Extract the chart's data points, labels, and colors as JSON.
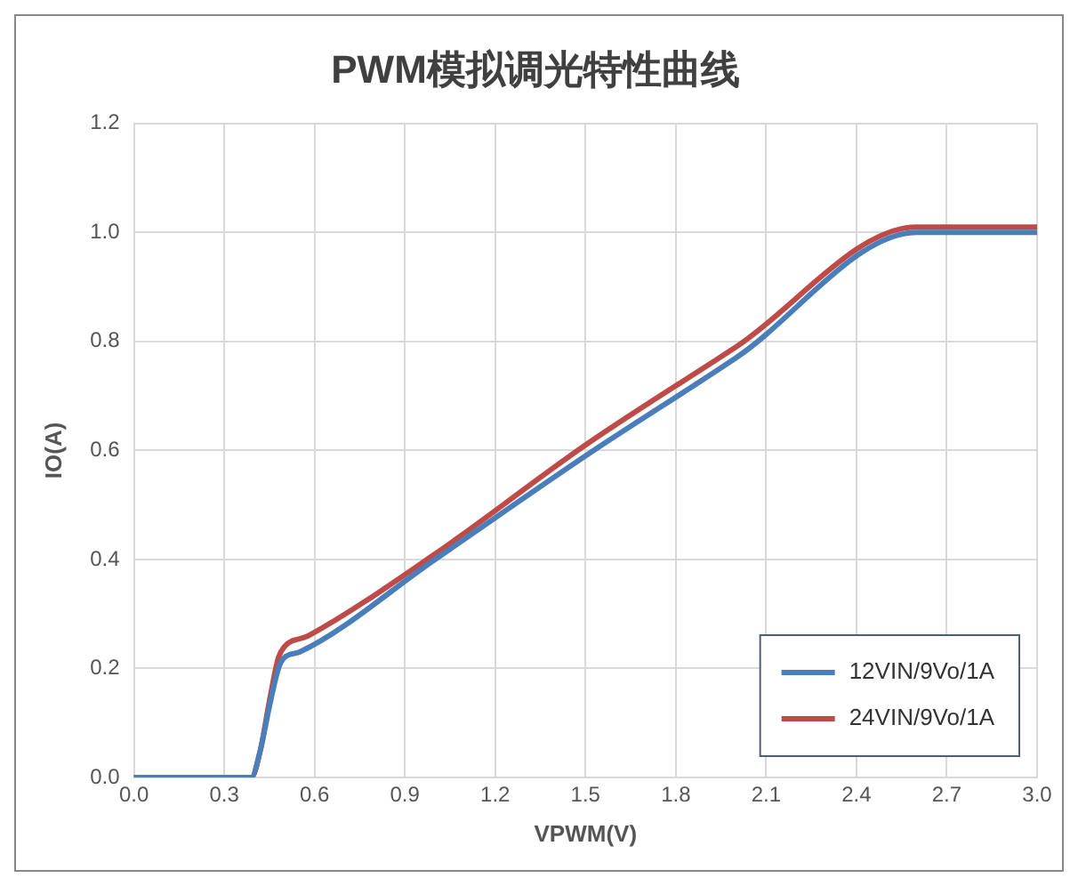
{
  "chart_data": {
    "type": "line",
    "title": "PWM模拟调光特性曲线",
    "xlabel": "VPWM(V)",
    "ylabel": "IO(A)",
    "xlim": [
      0,
      3
    ],
    "xticks": [
      {
        "value": 0,
        "label": "0.0"
      },
      {
        "value": 0.3,
        "label": "0.3"
      },
      {
        "value": 0.6,
        "label": "0.6"
      },
      {
        "value": 0.9,
        "label": "0.9"
      },
      {
        "value": 1.2,
        "label": "1.2"
      },
      {
        "value": 1.5,
        "label": "1.5"
      },
      {
        "value": 1.8,
        "label": "1.8"
      },
      {
        "value": 2.1,
        "label": "2.1"
      },
      {
        "value": 2.4,
        "label": "2.4"
      },
      {
        "value": 2.7,
        "label": "2.7"
      },
      {
        "value": 3,
        "label": "3.0"
      }
    ],
    "ylim": [
      0,
      1.2
    ],
    "yticks": [
      {
        "value": 0,
        "label": "0.0"
      },
      {
        "value": 0.2,
        "label": "0.2"
      },
      {
        "value": 0.4,
        "label": "0.4"
      },
      {
        "value": 0.6,
        "label": "0.6"
      },
      {
        "value": 0.8,
        "label": "0.8"
      },
      {
        "value": 1,
        "label": "1.0"
      },
      {
        "value": 1.2,
        "label": "1.2"
      }
    ],
    "grid": true,
    "legend": "bottom right",
    "marker": "none",
    "line_style": "solid",
    "series": [
      {
        "name": "12VIN/9Vo/1A",
        "color": "#4a7ebb",
        "x": [
          0,
          0.39,
          0.42,
          0.45,
          0.48,
          0.5,
          0.55,
          1.0,
          1.5,
          2.0,
          2.6,
          2.65,
          3.0
        ],
        "values": [
          0,
          0,
          0.05,
          0.13,
          0.2,
          0.22,
          0.23,
          0.4,
          0.59,
          0.77,
          1.0,
          1.0,
          1.0
        ]
      },
      {
        "name": "24VIN/9Vo/1A",
        "color": "#be4b48",
        "x": [
          0,
          0.39,
          0.42,
          0.45,
          0.48,
          0.5,
          0.58,
          1.0,
          1.5,
          2.0,
          2.6,
          2.65,
          3.0
        ],
        "values": [
          0,
          0,
          0.05,
          0.14,
          0.22,
          0.24,
          0.26,
          0.41,
          0.61,
          0.79,
          1.01,
          1.01,
          1.01
        ]
      }
    ]
  }
}
